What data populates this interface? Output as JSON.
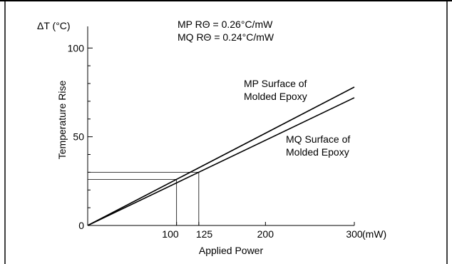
{
  "chart_data": {
    "type": "line",
    "x_axis": {
      "range": [
        0,
        300
      ],
      "ticks": [
        100,
        125,
        200,
        300
      ],
      "tick_labels": [
        "100",
        "125",
        "200",
        "300"
      ],
      "unit_label": "(mW)",
      "label": "Applied Power"
    },
    "y_axis": {
      "range": [
        0,
        115
      ],
      "ticks": [
        0,
        50,
        100
      ],
      "tick_labels": [
        "0",
        "50",
        "100"
      ],
      "minor_ticks": [
        10,
        20,
        30,
        40,
        60,
        70,
        80,
        90
      ],
      "label": "Temperature Rise",
      "unit_label": "ΔT (°C)"
    },
    "annotations": {
      "mp_resistance": "MP  RΘ = 0.26°C/mW",
      "mq_resistance": "MQ  RΘ = 0.24°C/mW"
    },
    "series": [
      {
        "name_line1": "MP Surface of",
        "name_line2": "Molded Epoxy",
        "x": [
          0,
          300
        ],
        "y": [
          0,
          78
        ]
      },
      {
        "name_line1": "MQ Surface of",
        "name_line2": "Molded Epoxy",
        "x": [
          0,
          300
        ],
        "y": [
          0,
          72
        ]
      }
    ],
    "reference_lines": [
      {
        "x": 100,
        "y": 26
      },
      {
        "x": 125,
        "y": 30
      }
    ],
    "grid": false
  }
}
